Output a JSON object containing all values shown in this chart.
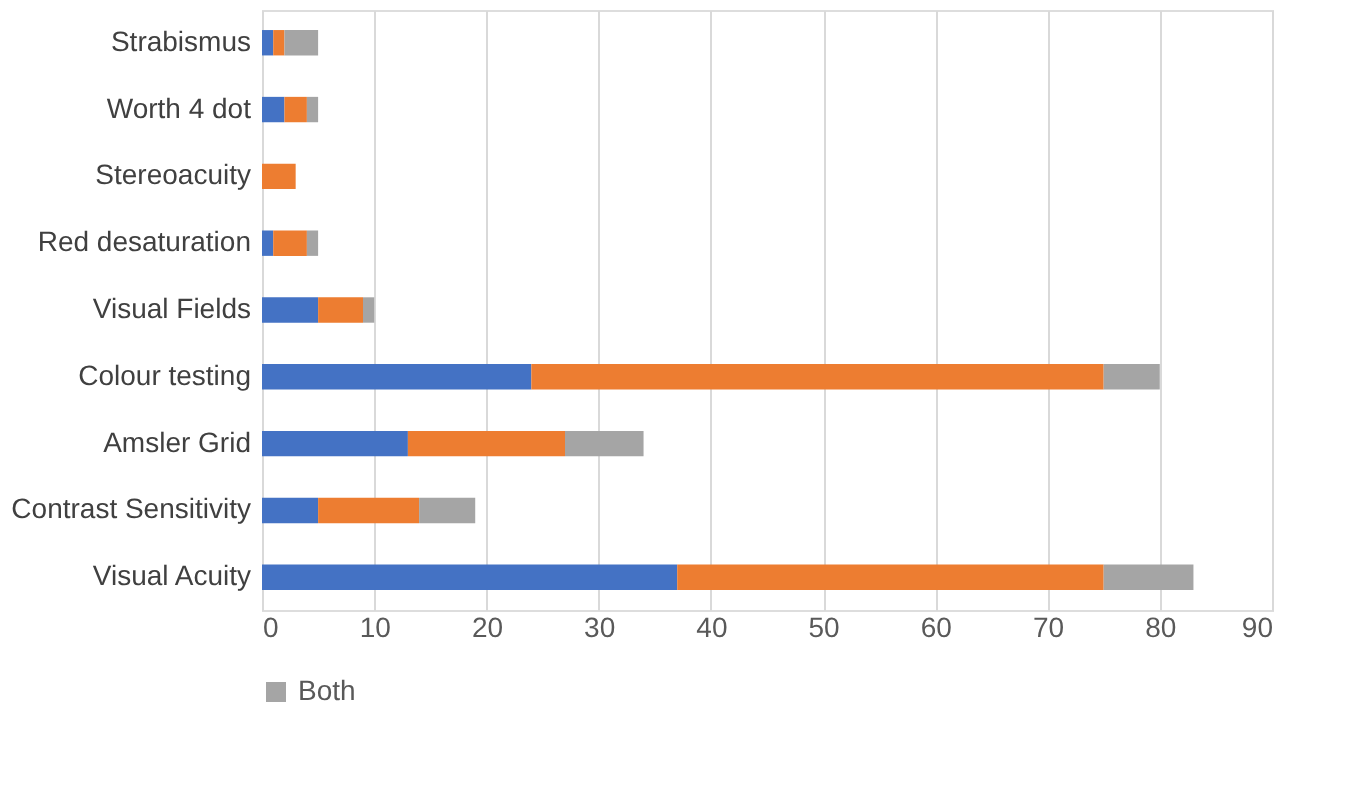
{
  "chart_data": {
    "type": "bar",
    "orientation": "horizontal",
    "stacked": true,
    "categories": [
      "Strabismus",
      "Worth 4 dot",
      "Stereoacuity",
      "Red desaturation",
      "Visual Fields",
      "Colour testing",
      "Amsler Grid",
      "Contrast Sensitivity",
      "Visual Acuity"
    ],
    "series": [
      {
        "color": "#4472c4",
        "values": [
          1,
          2,
          0,
          1,
          5,
          24,
          13,
          5,
          37
        ]
      },
      {
        "color": "#ed7d31",
        "values": [
          1,
          2,
          3,
          3,
          4,
          51,
          14,
          9,
          38
        ]
      },
      {
        "name": "Both",
        "color": "#a5a5a5",
        "values": [
          3,
          1,
          0,
          1,
          1,
          5,
          7,
          5,
          8
        ]
      }
    ],
    "xlim": [
      0,
      90
    ],
    "xticks": [
      0,
      10,
      20,
      30,
      40,
      50,
      60,
      70,
      80,
      90
    ],
    "grid": "x",
    "legend": "bottom"
  }
}
